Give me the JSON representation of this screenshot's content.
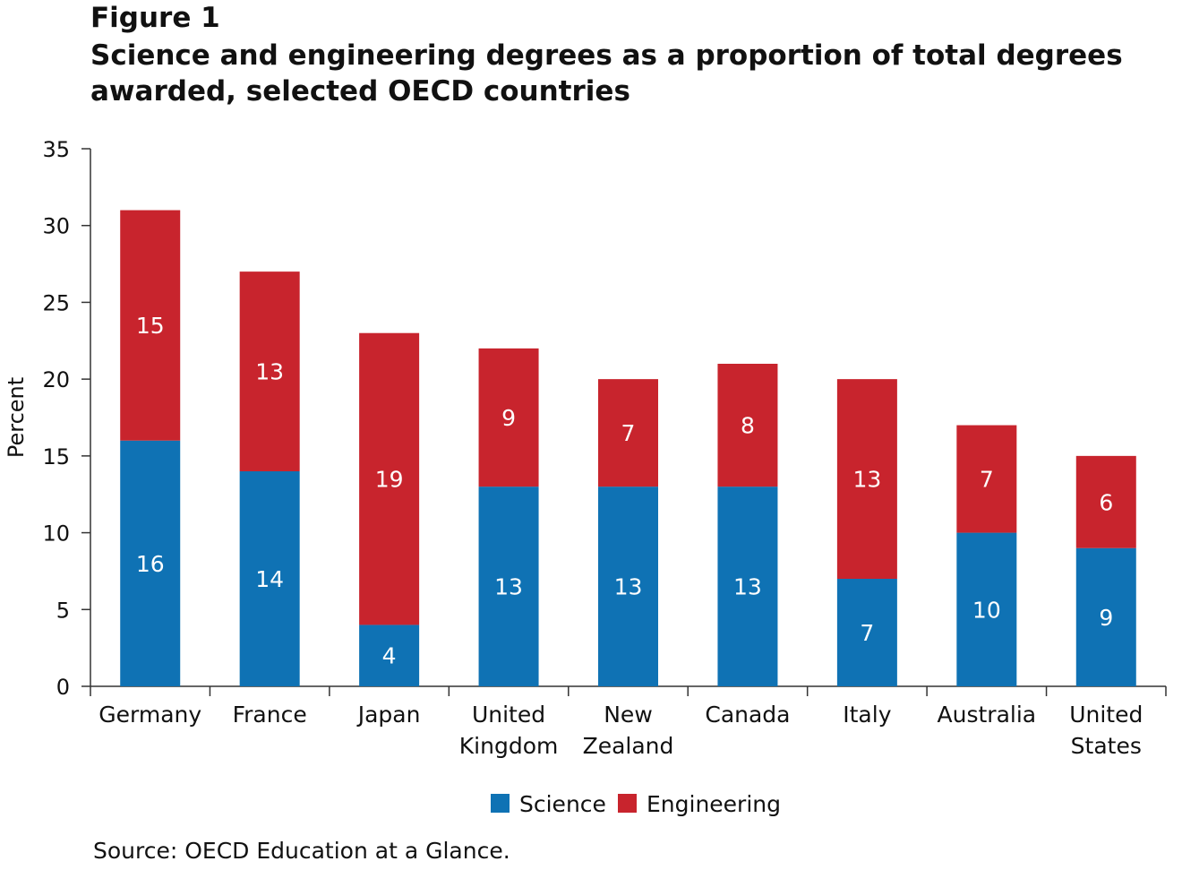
{
  "figure": {
    "label": "Figure 1",
    "title": "Science and engineering degrees as a proportion of total degrees awarded, selected OECD countries",
    "source": "Source: OECD Education at a Glance."
  },
  "colors": {
    "science": "#0f72b4",
    "engineering": "#c8242d",
    "axis": "#333333"
  },
  "chart_data": {
    "type": "bar",
    "stacked": true,
    "categories": [
      [
        "Germany"
      ],
      [
        "France"
      ],
      [
        "Japan"
      ],
      [
        "United",
        "Kingdom"
      ],
      [
        "New",
        "Zealand"
      ],
      [
        "Canada"
      ],
      [
        "Italy"
      ],
      [
        "Australia"
      ],
      [
        "United",
        "States"
      ]
    ],
    "series": [
      {
        "name": "Science",
        "values": [
          16,
          14,
          4,
          13,
          13,
          13,
          7,
          10,
          9
        ]
      },
      {
        "name": "Engineering",
        "values": [
          15,
          13,
          19,
          9,
          7,
          8,
          13,
          7,
          6
        ]
      }
    ],
    "ylabel": "Percent",
    "ylim": [
      0,
      35
    ],
    "yticks": [
      0,
      5,
      10,
      15,
      20,
      25,
      30,
      35
    ],
    "legend": "bottom-center",
    "grid": false
  }
}
